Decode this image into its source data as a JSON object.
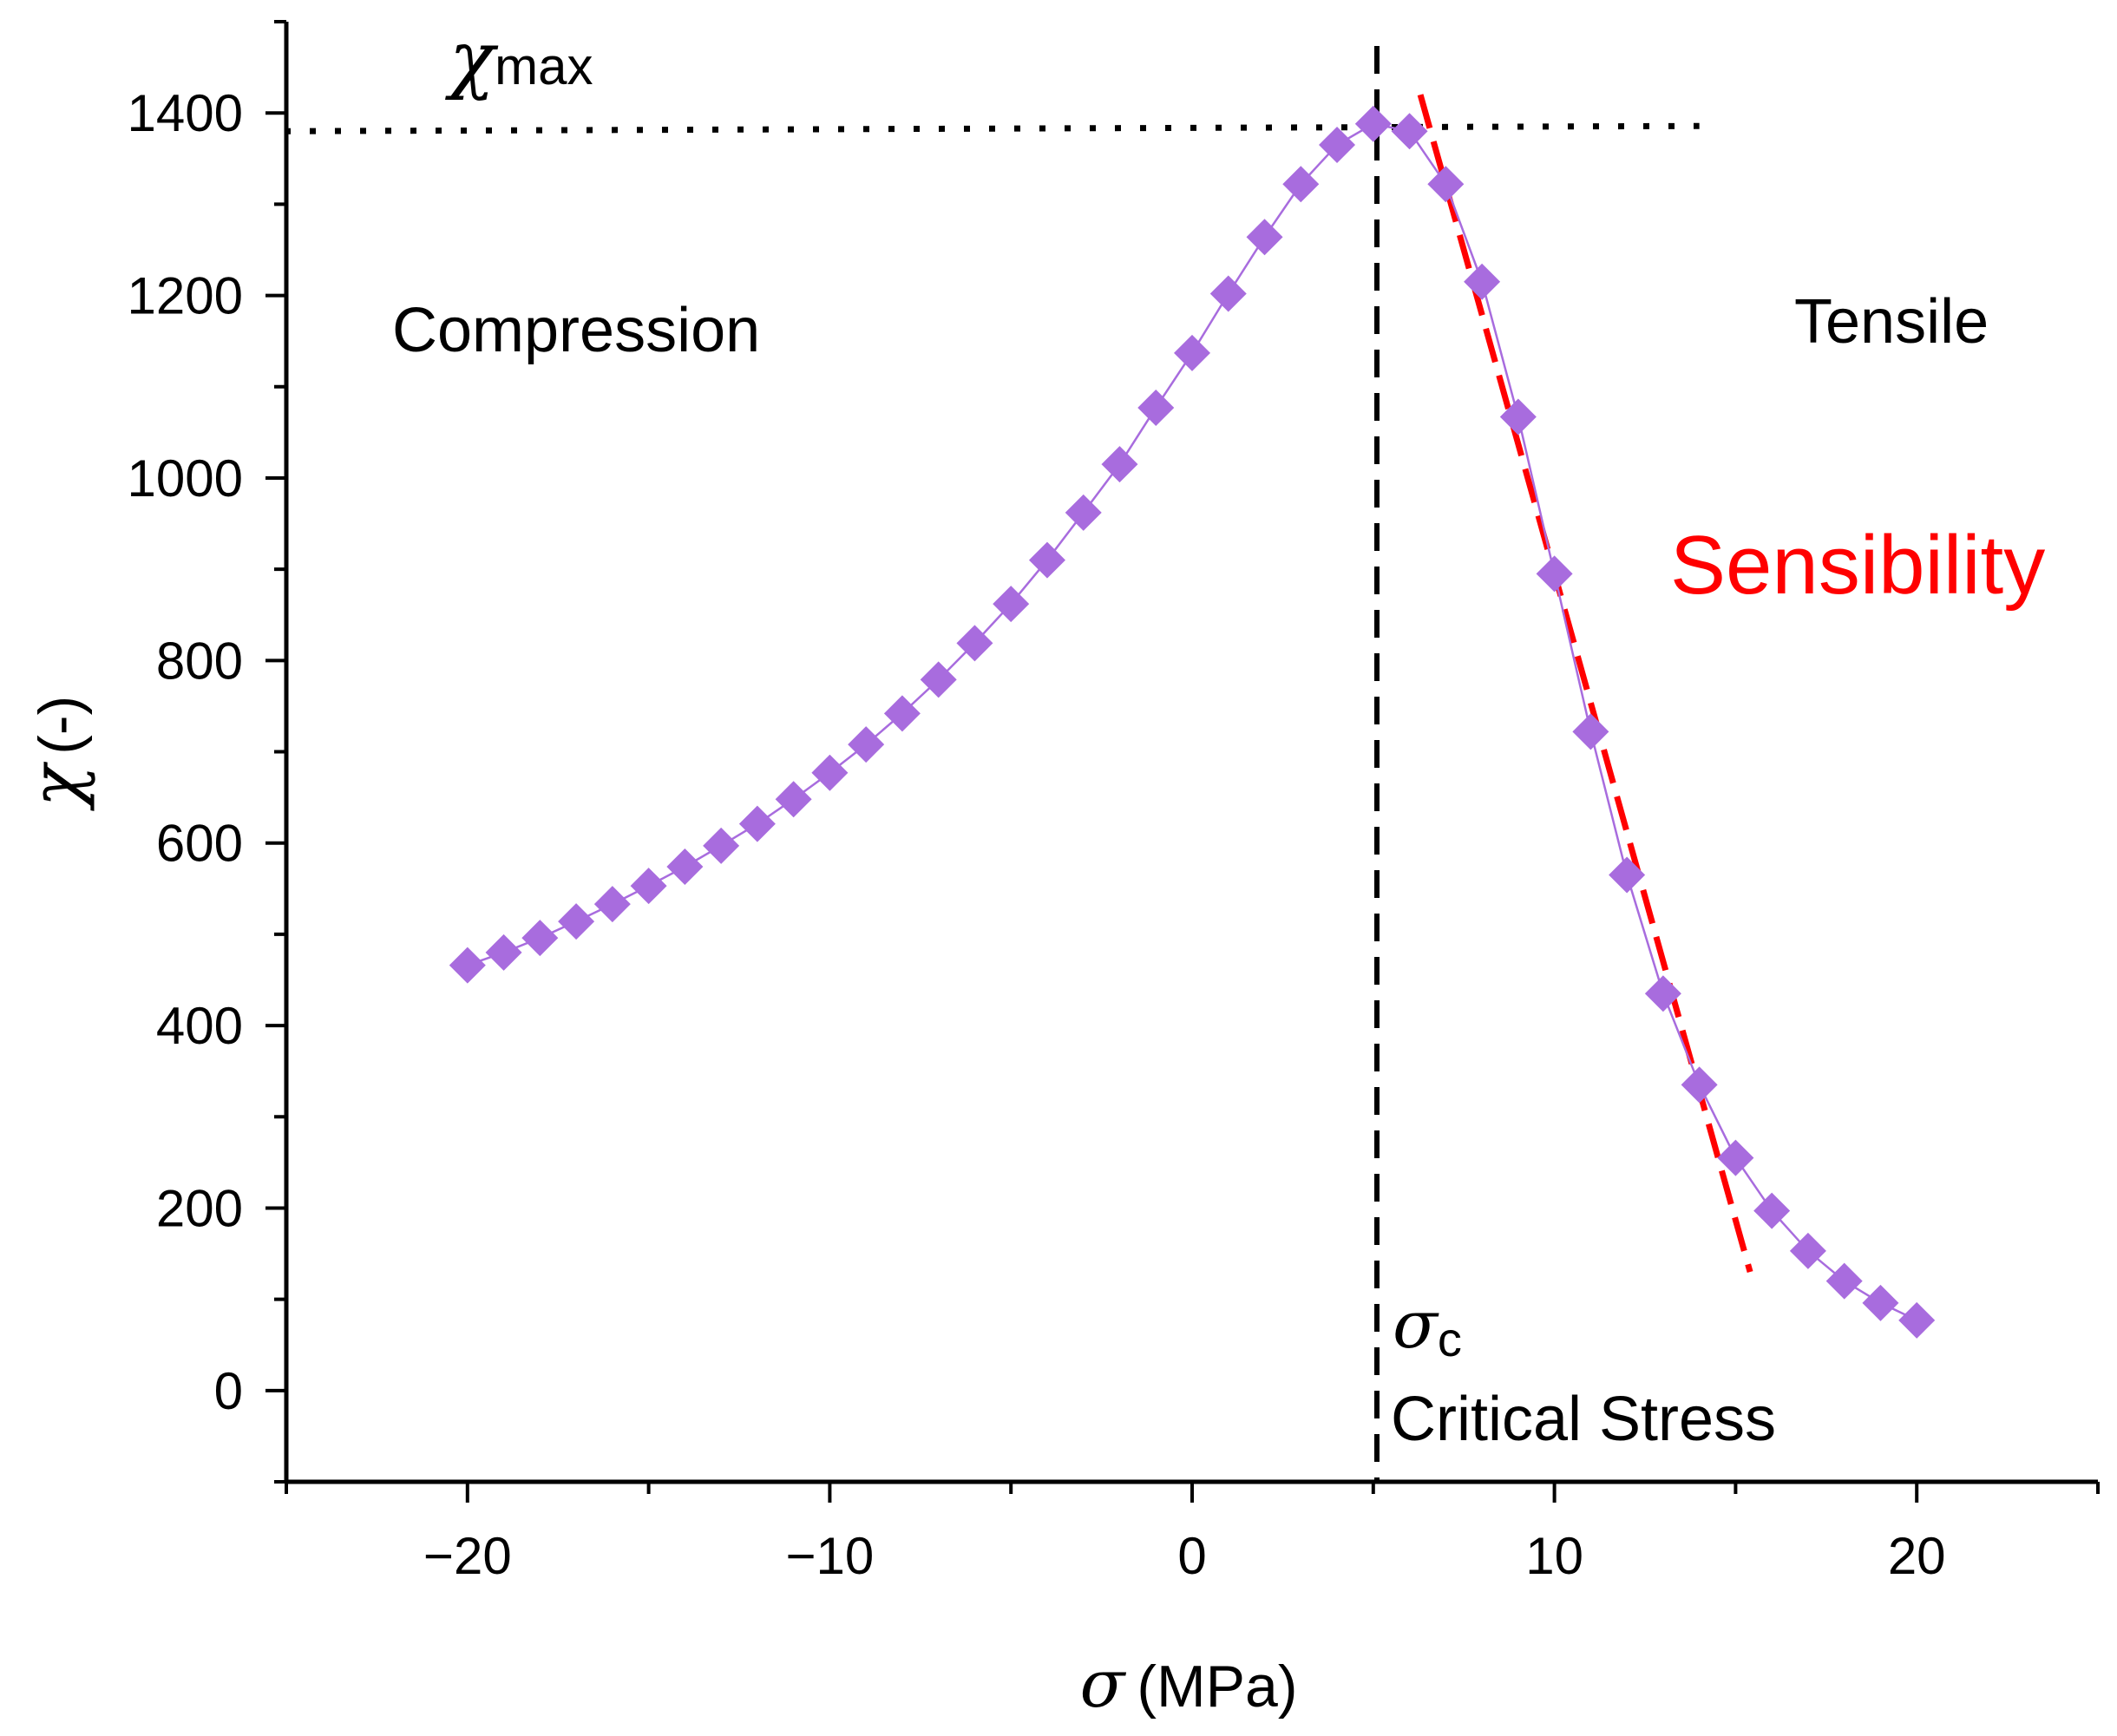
{
  "chart_data": {
    "type": "scatter",
    "x_axis": {
      "label_symbol": "σ",
      "label_unit": "(MPa)",
      "range": [
        -25,
        25
      ],
      "ticks": [
        -20,
        -10,
        0,
        10,
        20
      ],
      "tick_labels": [
        "−20",
        "−10",
        "0",
        "10",
        "20"
      ],
      "minor_step": 5
    },
    "y_axis": {
      "label_symbol": "χ",
      "label_unit": "(-)",
      "range": [
        -100,
        1500
      ],
      "ticks": [
        0,
        200,
        400,
        600,
        800,
        1000,
        1200,
        1400
      ],
      "tick_labels": [
        "0",
        "200",
        "400",
        "600",
        "800",
        "1000",
        "1200",
        "1400"
      ],
      "minor_step": 100
    },
    "grid": false,
    "series": [
      {
        "marker": "diamond",
        "color": "#a86cde",
        "connecting_line": true,
        "x": [
          -20,
          -19,
          -18,
          -17,
          -16,
          -15,
          -14,
          -13,
          -12,
          -11,
          -10,
          -9,
          -8,
          -7,
          -6,
          -5,
          -4,
          -3,
          -2,
          -1,
          0,
          1,
          2,
          3,
          4,
          5,
          6,
          7,
          8,
          9,
          10,
          11,
          12,
          13,
          14,
          15,
          16,
          17,
          18,
          19,
          20
        ],
        "y": [
          466,
          480,
          496,
          514,
          533,
          553,
          574,
          597,
          621,
          648,
          677,
          708,
          742,
          779,
          819,
          862,
          910,
          962,
          1015,
          1077,
          1137,
          1202,
          1264,
          1322,
          1365,
          1388,
          1380,
          1322,
          1215,
          1067,
          895,
          722,
          565,
          435,
          335,
          255,
          197,
          153,
          120,
          96,
          77
        ]
      }
    ],
    "reference_lines": {
      "chi_max_value": 1380,
      "critical_stress_x": 5.1,
      "sensibility_fit": {
        "from": [
          6.3,
          1420
        ],
        "to": [
          15.4,
          130
        ],
        "color": "#ff0000"
      }
    },
    "annotations": {
      "chi_max_symbol": "χ",
      "chi_max_sub": "max",
      "compression": "Compression",
      "tensile": "Tensile",
      "sensibility": "Sensibility",
      "sigma_c_symbol": "σ",
      "sigma_c_sub": "c",
      "critical_stress": "Critical Stress"
    }
  }
}
